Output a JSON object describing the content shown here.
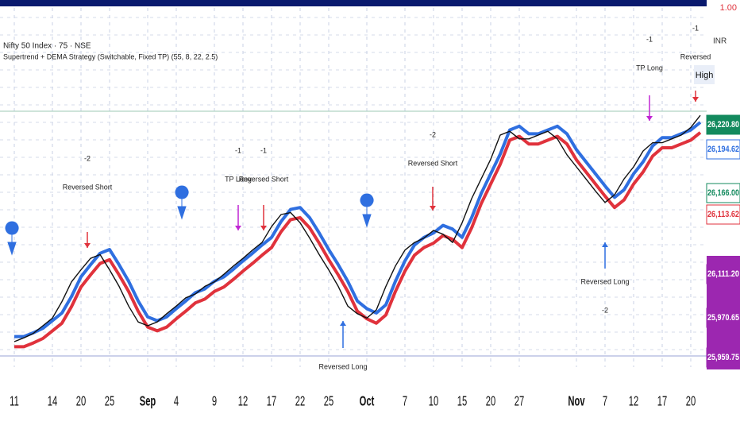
{
  "chart_data": {
    "type": "line",
    "title": "Nifty 50 Index · 75 · NSE",
    "subtitle": "Supertrend + DEMA Strategy (Switchable, Fixed TP) (55, 8, 22, 2.5)",
    "x": [
      0,
      1,
      2,
      3,
      4,
      5,
      6,
      7,
      8,
      9,
      10,
      11,
      12,
      13,
      14,
      15,
      16,
      17,
      18,
      19,
      20,
      21,
      22,
      23,
      24,
      25,
      26,
      27,
      28,
      29,
      30,
      31,
      32,
      33,
      34,
      35,
      36,
      37,
      38,
      39,
      40,
      41,
      42,
      43,
      44,
      45,
      46,
      47,
      48,
      49,
      50,
      51,
      52,
      53,
      54,
      55,
      56,
      57,
      58,
      59,
      60,
      61,
      62,
      63,
      64,
      65,
      66,
      67,
      68,
      69,
      70,
      71,
      72
    ],
    "xlim": [
      -1.5,
      72.5
    ],
    "xticks": [
      {
        "value": 0,
        "label": "11"
      },
      {
        "value": 4,
        "label": "14"
      },
      {
        "value": 7,
        "label": "20"
      },
      {
        "value": 10,
        "label": "25"
      },
      {
        "value": 14,
        "label": "Sep"
      },
      {
        "value": 17,
        "label": "4"
      },
      {
        "value": 21,
        "label": "9"
      },
      {
        "value": 24,
        "label": "12"
      },
      {
        "value": 27,
        "label": "17"
      },
      {
        "value": 30,
        "label": "22"
      },
      {
        "value": 33,
        "label": "25"
      },
      {
        "value": 37,
        "label": "Oct"
      },
      {
        "value": 41,
        "label": "7"
      },
      {
        "value": 44,
        "label": "10"
      },
      {
        "value": 47,
        "label": "15"
      },
      {
        "value": 50,
        "label": "20"
      },
      {
        "value": 53,
        "label": "27"
      },
      {
        "value": 59,
        "label": "Nov"
      },
      {
        "value": 62,
        "label": "7"
      },
      {
        "value": 65,
        "label": "12"
      },
      {
        "value": 68,
        "label": "17"
      },
      {
        "value": 71,
        "label": "20"
      }
    ],
    "ylim": [
      24237.5,
      27050
    ],
    "grid": true,
    "series": [
      {
        "color": "#2f6fe0",
        "values": [
          24465,
          24465,
          24495,
          24530,
          24590,
          24650,
          24780,
          24935,
          25030,
          25120,
          25150,
          25030,
          24900,
          24745,
          24620,
          24590,
          24620,
          24685,
          24745,
          24810,
          24840,
          24900,
          24935,
          24995,
          25060,
          25120,
          25185,
          25245,
          25370,
          25465,
          25480,
          25400,
          25280,
          25150,
          25030,
          24900,
          24745,
          24685,
          24650,
          24715,
          24900,
          25060,
          25185,
          25245,
          25280,
          25340,
          25310,
          25245,
          25400,
          25590,
          25745,
          25900,
          26090,
          26120,
          26060,
          26060,
          26090,
          26120,
          26060,
          25935,
          25840,
          25745,
          25650,
          25560,
          25620,
          25745,
          25840,
          25965,
          26030,
          26030,
          26060,
          26090,
          26150
        ]
      },
      {
        "color": "#e0323c",
        "values": [
          24385,
          24385,
          24415,
          24450,
          24510,
          24570,
          24700,
          24855,
          24950,
          25040,
          25070,
          24950,
          24820,
          24665,
          24540,
          24510,
          24540,
          24605,
          24665,
          24730,
          24760,
          24820,
          24855,
          24915,
          24980,
          25040,
          25105,
          25165,
          25290,
          25385,
          25400,
          25320,
          25200,
          25070,
          24950,
          24820,
          24665,
          24605,
          24570,
          24635,
          24820,
          24980,
          25105,
          25165,
          25200,
          25260,
          25230,
          25165,
          25320,
          25510,
          25665,
          25820,
          26010,
          26040,
          25980,
          25980,
          26010,
          26040,
          25980,
          25855,
          25760,
          25665,
          25570,
          25480,
          25540,
          25665,
          25760,
          25885,
          25950,
          25950,
          25980,
          26010,
          26070
        ]
      },
      {
        "color": "#111111",
        "values": [
          24425,
          24455,
          24490,
          24550,
          24610,
          24740,
          24895,
          24990,
          25080,
          25110,
          24990,
          24860,
          24705,
          24580,
          24550,
          24580,
          24645,
          24705,
          24770,
          24800,
          24860,
          24895,
          24955,
          25020,
          25080,
          25145,
          25205,
          25330,
          25425,
          25440,
          25360,
          25240,
          25110,
          24990,
          24860,
          24705,
          24645,
          24610,
          24675,
          24860,
          25020,
          25145,
          25205,
          25240,
          25300,
          25270,
          25205,
          25360,
          25550,
          25705,
          25860,
          26050,
          26080,
          26020,
          26020,
          26050,
          26080,
          26020,
          25895,
          25800,
          25705,
          25610,
          25520,
          25580,
          25705,
          25800,
          25925,
          25990,
          25990,
          26020,
          26050,
          26110,
          26205
        ]
      }
    ],
    "annotations": [
      {
        "lines": [
          "-2",
          "Reversed Short"
        ]
      },
      {
        "lines": [
          "-1",
          "TP Long"
        ]
      },
      {
        "lines": [
          "-1",
          "Reversed Short"
        ]
      },
      {
        "lines": [
          "Reversed Long"
        ]
      },
      {
        "lines": [
          "-2",
          "Reversed Short"
        ]
      },
      {
        "lines": [
          "Reversed Long",
          "-2"
        ]
      },
      {
        "lines": [
          "-1",
          "TP Long"
        ]
      },
      {
        "lines": [
          "-1",
          "Reversed"
        ]
      }
    ],
    "scale_label": "1.00",
    "currency": "INR",
    "high_label": "High",
    "price_labels": [
      "26,220.80",
      "26,194.62",
      "26,166.00",
      "26,113.62",
      "26,111.20",
      "25,970.65",
      "25,959.75"
    ]
  }
}
